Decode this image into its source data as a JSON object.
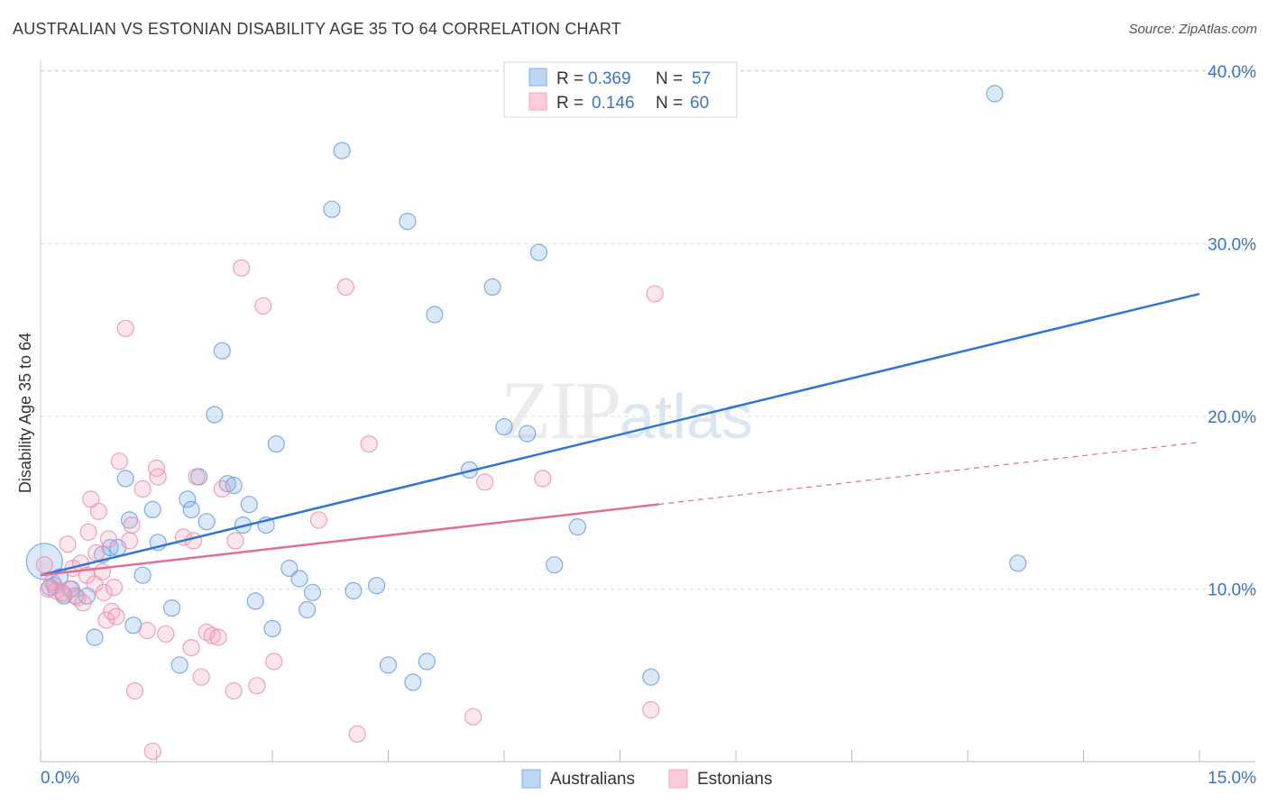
{
  "title": "AUSTRALIAN VS ESTONIAN DISABILITY AGE 35 TO 64 CORRELATION CHART",
  "source": "Source: ZipAtlas.com",
  "watermark": {
    "zip": "ZIP",
    "atlas": "atlas"
  },
  "colors": {
    "australians": "#7aaee8",
    "australians_line": "#2f76d2",
    "estonians": "#f4a7bf",
    "estonians_line": "#e06e98",
    "axis_label": "#3a74c4",
    "grid": "#dddddd"
  },
  "legend": {
    "rows": [
      {
        "r_label": "R =",
        "r_value": "0.369",
        "n_label": "N =",
        "n_value": "57"
      },
      {
        "r_label": "R =",
        "r_value": "0.146",
        "n_label": "N =",
        "n_value": "60"
      }
    ]
  },
  "chart_data": {
    "type": "scatter",
    "title": "AUSTRALIAN VS ESTONIAN DISABILITY AGE 35 TO 64 CORRELATION CHART",
    "xlabel": "",
    "ylabel": "Disability Age 35 to 64",
    "xlim": [
      0,
      15
    ],
    "ylim": [
      0,
      42
    ],
    "x_tick_labels": [
      "0.0%",
      "15.0%"
    ],
    "y_ticks": [
      10,
      20,
      30,
      40
    ],
    "y_tick_labels": [
      "10.0%",
      "20.0%",
      "30.0%",
      "40.0%"
    ],
    "legend_position": "bottom",
    "series": [
      {
        "name": "Australians",
        "r": 0.369,
        "n": 57,
        "trend": {
          "x": [
            0,
            15
          ],
          "y": [
            10.8,
            27.1
          ],
          "dashed_from": null
        },
        "points": [
          [
            0.05,
            11.6
          ],
          [
            0.18,
            10.2
          ],
          [
            0.25,
            10.7
          ],
          [
            0.3,
            9.6
          ],
          [
            0.4,
            10.0
          ],
          [
            0.45,
            9.6
          ],
          [
            0.6,
            9.6
          ],
          [
            0.7,
            7.2
          ],
          [
            0.8,
            12.0
          ],
          [
            0.9,
            12.4
          ],
          [
            1.1,
            16.4
          ],
          [
            1.15,
            14.0
          ],
          [
            1.2,
            7.9
          ],
          [
            1.32,
            10.8
          ],
          [
            1.45,
            14.6
          ],
          [
            1.52,
            12.7
          ],
          [
            1.7,
            8.9
          ],
          [
            1.8,
            5.6
          ],
          [
            1.9,
            15.2
          ],
          [
            1.95,
            14.6
          ],
          [
            2.05,
            16.5
          ],
          [
            2.15,
            13.9
          ],
          [
            2.25,
            20.1
          ],
          [
            2.35,
            23.8
          ],
          [
            2.42,
            16.1
          ],
          [
            2.5,
            16.0
          ],
          [
            2.62,
            13.7
          ],
          [
            2.7,
            14.9
          ],
          [
            2.78,
            9.3
          ],
          [
            2.92,
            13.7
          ],
          [
            3.0,
            7.7
          ],
          [
            3.05,
            18.4
          ],
          [
            3.22,
            11.2
          ],
          [
            3.35,
            10.6
          ],
          [
            3.45,
            8.8
          ],
          [
            3.52,
            9.8
          ],
          [
            3.77,
            32.0
          ],
          [
            3.9,
            35.4
          ],
          [
            4.05,
            9.9
          ],
          [
            4.35,
            10.2
          ],
          [
            4.5,
            5.6
          ],
          [
            4.75,
            31.3
          ],
          [
            4.82,
            4.6
          ],
          [
            5.0,
            5.8
          ],
          [
            5.1,
            25.9
          ],
          [
            5.55,
            16.9
          ],
          [
            5.85,
            27.5
          ],
          [
            6.0,
            19.4
          ],
          [
            6.3,
            19.0
          ],
          [
            6.45,
            29.5
          ],
          [
            6.65,
            11.4
          ],
          [
            6.95,
            13.6
          ],
          [
            7.9,
            4.9
          ],
          [
            12.35,
            38.7
          ],
          [
            12.65,
            11.5
          ],
          [
            0.12,
            10.1
          ],
          [
            1.0,
            12.4
          ]
        ]
      },
      {
        "name": "Estonians",
        "r": 0.146,
        "n": 60,
        "trend": {
          "x": [
            0,
            15
          ],
          "y": [
            10.8,
            18.5
          ],
          "dashed_from": 8.0
        },
        "points": [
          [
            0.05,
            11.4
          ],
          [
            0.1,
            10.0
          ],
          [
            0.15,
            10.4
          ],
          [
            0.2,
            9.9
          ],
          [
            0.28,
            9.8
          ],
          [
            0.35,
            12.6
          ],
          [
            0.38,
            10.0
          ],
          [
            0.42,
            11.2
          ],
          [
            0.48,
            9.5
          ],
          [
            0.52,
            11.5
          ],
          [
            0.55,
            9.2
          ],
          [
            0.6,
            10.8
          ],
          [
            0.62,
            13.3
          ],
          [
            0.65,
            15.2
          ],
          [
            0.7,
            10.3
          ],
          [
            0.72,
            12.1
          ],
          [
            0.75,
            14.5
          ],
          [
            0.8,
            11.0
          ],
          [
            0.82,
            9.8
          ],
          [
            0.85,
            8.2
          ],
          [
            0.88,
            12.9
          ],
          [
            0.92,
            8.7
          ],
          [
            0.95,
            10.1
          ],
          [
            0.98,
            8.4
          ],
          [
            1.02,
            17.4
          ],
          [
            1.1,
            25.1
          ],
          [
            1.15,
            12.8
          ],
          [
            1.18,
            13.7
          ],
          [
            1.22,
            4.1
          ],
          [
            1.32,
            15.8
          ],
          [
            1.38,
            7.6
          ],
          [
            1.45,
            0.6
          ],
          [
            1.5,
            17.0
          ],
          [
            1.52,
            16.5
          ],
          [
            1.62,
            7.4
          ],
          [
            1.85,
            13.0
          ],
          [
            1.95,
            6.6
          ],
          [
            1.98,
            12.8
          ],
          [
            2.02,
            16.5
          ],
          [
            2.08,
            4.9
          ],
          [
            2.15,
            7.5
          ],
          [
            2.22,
            7.3
          ],
          [
            2.3,
            7.2
          ],
          [
            2.35,
            15.8
          ],
          [
            2.5,
            4.1
          ],
          [
            2.52,
            12.8
          ],
          [
            2.6,
            28.6
          ],
          [
            2.8,
            4.4
          ],
          [
            2.88,
            26.4
          ],
          [
            3.02,
            5.8
          ],
          [
            3.6,
            14.0
          ],
          [
            3.95,
            27.5
          ],
          [
            4.1,
            1.6
          ],
          [
            4.25,
            18.4
          ],
          [
            5.6,
            2.6
          ],
          [
            5.75,
            16.2
          ],
          [
            6.5,
            16.4
          ],
          [
            7.9,
            3.0
          ],
          [
            7.95,
            27.1
          ],
          [
            0.3,
            9.7
          ]
        ]
      }
    ]
  }
}
